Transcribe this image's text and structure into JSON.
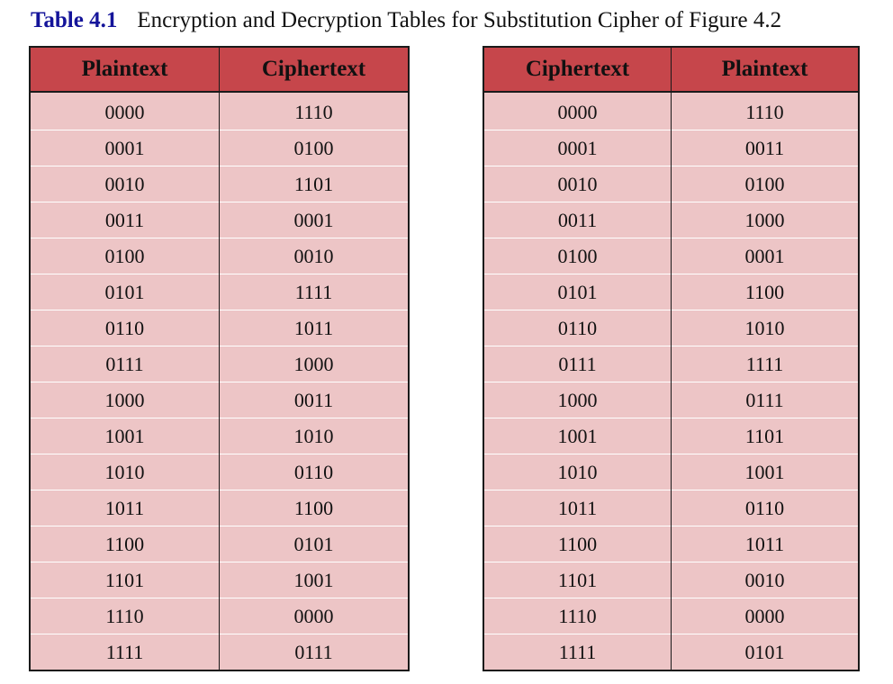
{
  "caption": {
    "label": "Table 4.1",
    "title": "Encryption and Decryption Tables for Substitution Cipher of Figure 4.2"
  },
  "encryption_table": {
    "headers": [
      "Plaintext",
      "Ciphertext"
    ],
    "rows": [
      [
        "0000",
        "1110"
      ],
      [
        "0001",
        "0100"
      ],
      [
        "0010",
        "1101"
      ],
      [
        "0011",
        "0001"
      ],
      [
        "0100",
        "0010"
      ],
      [
        "0101",
        "1111"
      ],
      [
        "0110",
        "1011"
      ],
      [
        "0111",
        "1000"
      ],
      [
        "1000",
        "0011"
      ],
      [
        "1001",
        "1010"
      ],
      [
        "1010",
        "0110"
      ],
      [
        "1011",
        "1100"
      ],
      [
        "1100",
        "0101"
      ],
      [
        "1101",
        "1001"
      ],
      [
        "1110",
        "0000"
      ],
      [
        "1111",
        "0111"
      ]
    ]
  },
  "decryption_table": {
    "headers": [
      "Ciphertext",
      "Plaintext"
    ],
    "rows": [
      [
        "0000",
        "1110"
      ],
      [
        "0001",
        "0011"
      ],
      [
        "0010",
        "0100"
      ],
      [
        "0011",
        "1000"
      ],
      [
        "0100",
        "0001"
      ],
      [
        "0101",
        "1100"
      ],
      [
        "0110",
        "1010"
      ],
      [
        "0111",
        "1111"
      ],
      [
        "1000",
        "0111"
      ],
      [
        "1001",
        "1101"
      ],
      [
        "1010",
        "1001"
      ],
      [
        "1011",
        "0110"
      ],
      [
        "1100",
        "1011"
      ],
      [
        "1101",
        "0010"
      ],
      [
        "1110",
        "0000"
      ],
      [
        "1111",
        "0101"
      ]
    ]
  },
  "colors": {
    "header_fill": "#c6464b",
    "cell_fill": "#edc5c6",
    "caption_label": "#14149a"
  }
}
